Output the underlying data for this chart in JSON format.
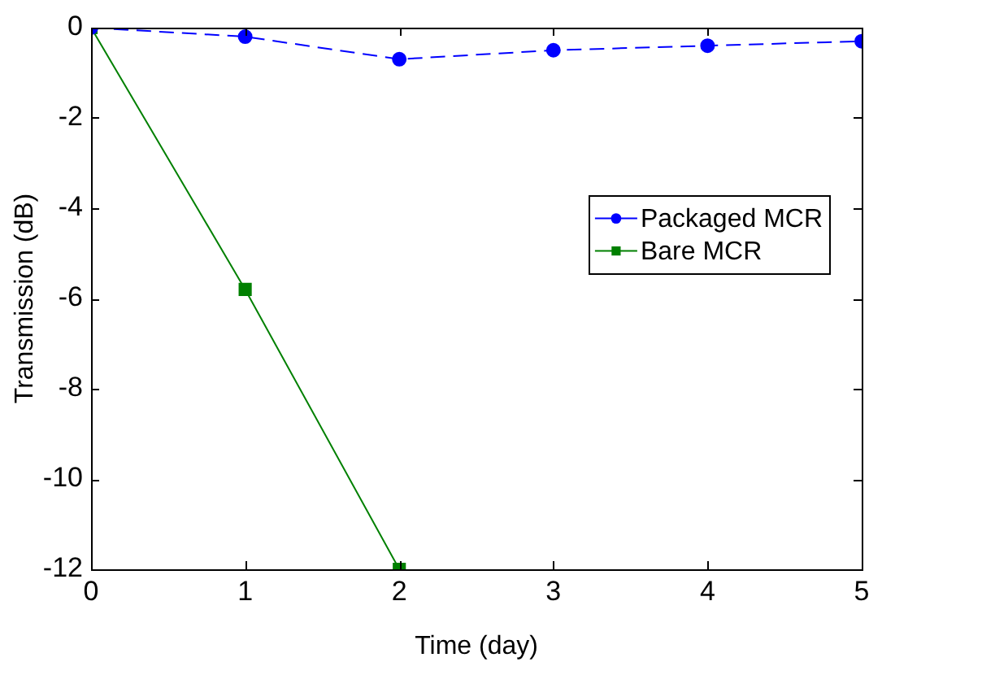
{
  "chart_data": {
    "type": "line",
    "xlabel": "Time (day)",
    "ylabel": "Transmission (dB)",
    "x": [
      0,
      1,
      2,
      3,
      4,
      5
    ],
    "xlim": [
      0,
      5
    ],
    "xticks": [
      0,
      1,
      2,
      3,
      4,
      5
    ],
    "ylim": [
      -12,
      0
    ],
    "yticks": [
      -12,
      -10,
      -8,
      -6,
      -4,
      -2,
      0
    ],
    "grid": false,
    "legend": "right",
    "series": [
      {
        "name": "Packaged MCR",
        "color": "#0000ff",
        "values": [
          0,
          -0.2,
          -0.7,
          -0.5,
          -0.4,
          -0.3
        ],
        "marker": "circle",
        "line_style": "dashed"
      },
      {
        "name": "Bare MCR",
        "color": "#008000",
        "values": [
          0,
          -5.8,
          -12,
          null,
          null,
          null
        ],
        "marker": "square",
        "line_style": "solid"
      }
    ]
  }
}
